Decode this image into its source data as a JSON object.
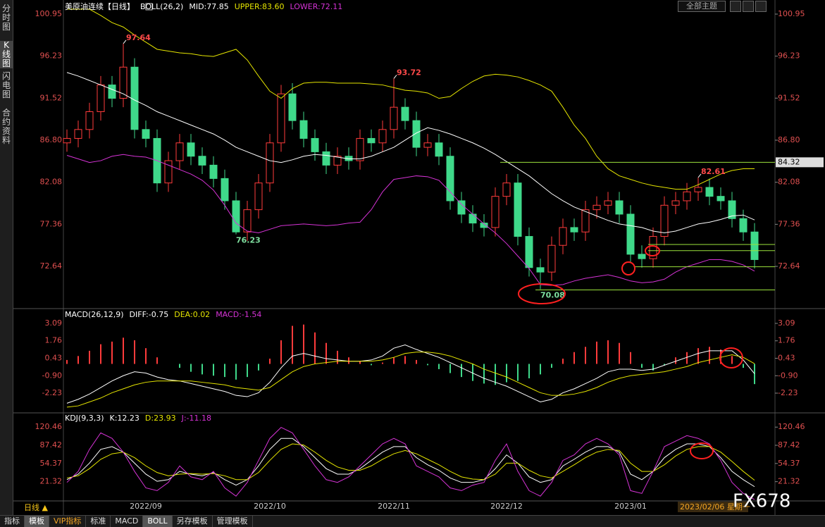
{
  "sidebar": [
    "分时图",
    "K线图",
    "闪电图",
    "合约资料"
  ],
  "toolbar": {
    "theme": "全部主题"
  },
  "footer": {
    "period": "日线 ▲",
    "tabs": [
      "指标",
      "模板",
      "VIP指标",
      "标准",
      "MACD",
      "BOLL",
      "另存模板",
      "管理模板"
    ],
    "cursor_date": "2023/02/06 星期一",
    "watermark": "FX678"
  },
  "chart_data": [
    {
      "type": "candlestick",
      "title": "美原油连续【日线】",
      "indicator": "BOLL(26,2)",
      "categories": [
        null,
        null,
        null,
        null,
        null,
        null,
        null,
        "2022/09",
        null,
        null,
        null,
        null,
        null,
        null,
        null,
        null,
        null,
        null,
        "2022/10",
        null,
        null,
        null,
        null,
        null,
        null,
        null,
        null,
        null,
        null,
        "2022/11",
        null,
        null,
        null,
        null,
        null,
        null,
        null,
        null,
        null,
        "2022/12",
        null,
        null,
        null,
        null,
        null,
        null,
        null,
        null,
        null,
        null,
        "2023/01",
        null,
        null,
        null,
        null,
        null,
        null,
        null,
        null,
        null,
        null,
        null
      ],
      "open": [
        86.5,
        87,
        88,
        90,
        93,
        91.5,
        95,
        88,
        87,
        82,
        84.5,
        86.5,
        85,
        84,
        82.5,
        80,
        76.5,
        79,
        82,
        86.5,
        92,
        89,
        87,
        85.5,
        84,
        85,
        84.5,
        87,
        86.5,
        88,
        90.5,
        89,
        86,
        86.5,
        85,
        80,
        78.5,
        77.5,
        77,
        80.5,
        82,
        76,
        72.5,
        72,
        75,
        77,
        76.5,
        79,
        79.5,
        80,
        78.5,
        74,
        73.5,
        76,
        79.5,
        80,
        81,
        81.5,
        80.5,
        80,
        78,
        76.5
      ],
      "high": [
        88,
        89,
        91,
        94,
        94,
        97.64,
        96,
        89,
        88,
        85.5,
        87.5,
        87.5,
        86,
        85,
        83.5,
        81,
        80,
        83,
        87.5,
        93,
        93.2,
        90,
        88,
        86.5,
        86,
        86,
        88,
        88,
        89,
        93.72,
        91.5,
        90,
        87.5,
        87.5,
        86,
        81,
        79.5,
        78.5,
        81.5,
        83,
        83,
        77,
        73.5,
        76,
        78,
        78,
        80,
        80.5,
        81,
        81,
        79.5,
        75,
        77,
        80.5,
        81,
        82,
        82.61,
        82.5,
        81.5,
        81,
        79,
        77.5
      ],
      "low": [
        85.5,
        86,
        87,
        89,
        90.5,
        90.5,
        87,
        86,
        81,
        81,
        83.5,
        84,
        83,
        81.5,
        79,
        76.23,
        75.5,
        78,
        81,
        85.5,
        88,
        86,
        84.5,
        83,
        83,
        83.5,
        83.5,
        85.5,
        85.5,
        87,
        88,
        85,
        85,
        84,
        79,
        77.5,
        76.5,
        76,
        76,
        79.5,
        75,
        71.5,
        70.08,
        71,
        74,
        75.5,
        75.5,
        78,
        78.5,
        77.5,
        73,
        72.5,
        72.5,
        75,
        78.5,
        79,
        80,
        79.5,
        79,
        77,
        75.5,
        72.4
      ],
      "close": [
        87,
        88,
        90,
        93,
        91.5,
        95,
        88,
        87,
        82,
        84.5,
        86.5,
        85,
        84,
        82.5,
        80,
        76.5,
        79,
        82,
        86.5,
        92,
        89,
        87,
        85.5,
        84,
        85,
        84.5,
        87,
        86.5,
        88,
        90.5,
        89,
        86,
        86.5,
        85,
        80,
        78.5,
        77.5,
        77,
        80.5,
        82,
        76,
        72.5,
        72,
        75,
        77,
        76.5,
        79,
        79.5,
        80,
        78.5,
        74,
        73.5,
        76,
        79.5,
        80,
        81,
        81.5,
        80.5,
        80,
        78,
        76.5,
        73.4
      ],
      "up_color": "#ff3b3b",
      "down_color": "#3fd98a",
      "series": [
        {
          "name": "MID:77.85",
          "color": "#ffffff",
          "values": [
            94.4,
            94,
            93.5,
            93,
            92.5,
            92,
            91.3,
            90.7,
            90,
            89.5,
            89,
            88.5,
            88,
            87.5,
            86.8,
            86,
            85.5,
            85,
            84.5,
            84.3,
            84.6,
            85,
            85.2,
            85.1,
            84.9,
            84.7,
            84.7,
            85,
            85.5,
            86,
            86.8,
            87.6,
            88.2,
            87.9,
            87.5,
            87,
            86.5,
            85.9,
            85.2,
            84.4,
            83.6,
            82.8,
            81.8,
            80.8,
            80,
            79.3,
            78.8,
            78.3,
            77.8,
            77.4,
            77.2,
            77,
            76.6,
            76.4,
            76.6,
            77,
            77.4,
            77.6,
            77.9,
            78.3,
            78.4,
            77.85
          ]
        },
        {
          "name": "UPPER:83.60",
          "color": "#e5e500",
          "values": [
            101.5,
            101.5,
            101.5,
            100.8,
            100,
            99.5,
            98.6,
            97.8,
            97,
            96.8,
            96.6,
            96.5,
            96.3,
            96.2,
            96.6,
            97,
            95.8,
            94,
            92.3,
            91.5,
            92.6,
            93.2,
            93.3,
            93.3,
            93.2,
            93.2,
            93.2,
            93.1,
            93,
            92.7,
            92.4,
            92.3,
            92.1,
            91.5,
            91.7,
            92.6,
            93.4,
            94,
            94.2,
            94.1,
            93.9,
            93.5,
            93,
            92.3,
            90.5,
            88.5,
            87,
            85,
            83.6,
            82.8,
            82.4,
            82,
            81.7,
            81.5,
            81.3,
            81.3,
            81.8,
            82.4,
            83,
            83.4,
            83.6,
            83.6
          ]
        },
        {
          "name": "LOWER:72.11",
          "color": "#d633d6",
          "values": [
            85.1,
            84.7,
            84.3,
            84.5,
            85,
            85.2,
            85,
            84.9,
            84.5,
            84,
            83.5,
            83,
            82.3,
            81.2,
            79.5,
            77.5,
            76.6,
            76.4,
            76.8,
            77.2,
            77.3,
            77.4,
            77.3,
            77.2,
            77.3,
            77.5,
            77.6,
            79,
            81,
            82.4,
            82.6,
            82.8,
            82.7,
            82.3,
            81,
            79.6,
            78.5,
            77.4,
            76.4,
            75.2,
            73.8,
            72.4,
            70.6,
            70.5,
            70.6,
            71,
            71.3,
            71.5,
            71.7,
            71.4,
            71,
            70.8,
            70.9,
            71.2,
            72,
            72.6,
            73,
            73.4,
            73.4,
            73.2,
            72.8,
            72.11
          ]
        }
      ],
      "high_marks": [
        97.64,
        93.72,
        82.61
      ],
      "low_marks": [
        76.23,
        70.08
      ],
      "resistance_line": 84.32,
      "support_lines": [
        75.1,
        74.4,
        72.6,
        70.0
      ],
      "ylim": [
        67.98,
        101.9
      ],
      "yticks": [
        100.95,
        96.23,
        91.52,
        {
          "value": 86.8,
          "label": "86.80"
        },
        82.08,
        77.36,
        72.64
      ]
    },
    {
      "type": "macd",
      "title": "MACD(26,12,9)",
      "up_color": "#ff3b3b",
      "down_color": "#3fd98a",
      "series": [
        {
          "name": "DIFF:-0.75",
          "color": "#ffffff",
          "values": [
            -3.0,
            -2.7,
            -2.3,
            -1.8,
            -1.3,
            -0.9,
            -0.6,
            -0.7,
            -1.0,
            -1.2,
            -1.3,
            -1.5,
            -1.7,
            -1.9,
            -2.1,
            -2.4,
            -2.5,
            -2.2,
            -1.4,
            -0.3,
            0.6,
            0.8,
            0.6,
            0.4,
            0.3,
            0.2,
            0.2,
            0.3,
            0.6,
            1.2,
            1.45,
            1.1,
            0.8,
            0.5,
            0.1,
            -0.3,
            -0.7,
            -1.1,
            -1.4,
            -1.7,
            -2.1,
            -2.5,
            -2.9,
            -2.7,
            -2.2,
            -1.9,
            -1.5,
            -1.1,
            -0.6,
            -0.4,
            -0.4,
            -0.5,
            -0.4,
            -0.1,
            0.2,
            0.5,
            0.8,
            1.0,
            1.0,
            1.0,
            0.3,
            -0.75
          ]
        },
        {
          "name": "DEA:0.02",
          "color": "#e5e500",
          "values": [
            -3.3,
            -3.2,
            -2.9,
            -2.6,
            -2.2,
            -1.9,
            -1.6,
            -1.4,
            -1.3,
            -1.3,
            -1.3,
            -1.3,
            -1.4,
            -1.5,
            -1.6,
            -1.8,
            -1.9,
            -2.0,
            -1.8,
            -1.2,
            -0.6,
            -0.2,
            0,
            0.1,
            0.2,
            0.2,
            0.2,
            0.2,
            0.3,
            0.5,
            0.8,
            0.9,
            0.9,
            0.8,
            0.6,
            0.3,
            0,
            -0.4,
            -0.7,
            -1.0,
            -1.4,
            -1.8,
            -2.2,
            -2.4,
            -2.4,
            -2.3,
            -2.1,
            -1.8,
            -1.4,
            -1.1,
            -0.9,
            -0.8,
            -0.7,
            -0.6,
            -0.4,
            -0.2,
            0.1,
            0.3,
            0.5,
            0.7,
            0.5,
            0.02
          ]
        },
        {
          "name": "MACD:-1.54",
          "color": "#d633d6",
          "type": "histogram",
          "values": [
            0.3,
            0.6,
            1.0,
            1.5,
            1.7,
            2.0,
            1.8,
            1.2,
            0.5,
            0,
            -0.3,
            -0.6,
            -0.8,
            -0.9,
            -1.0,
            -1.2,
            -1.0,
            -0.5,
            0.4,
            1.8,
            2.9,
            3.0,
            2.4,
            1.6,
            1.0,
            0.5,
            0.2,
            -0.1,
            0.1,
            0.5,
            0.6,
            0.3,
            -0.1,
            -0.4,
            -0.7,
            -1.0,
            -1.3,
            -1.5,
            -1.6,
            -1.4,
            -1.3,
            -1.1,
            -0.8,
            -0.3,
            0.4,
            0.9,
            1.3,
            1.7,
            1.8,
            1.6,
            0.9,
            -0.3,
            -0.5,
            -0.1,
            0.5,
            0.9,
            1.2,
            1.3,
            1.1,
            0.6,
            -0.3,
            -1.54
          ]
        }
      ],
      "ylim": [
        -3.68,
        4.11
      ],
      "yticks": [
        3.09,
        1.76,
        0.43,
        {
          "value": -0.9,
          "label": "-0.90"
        },
        -2.23
      ]
    },
    {
      "type": "kdj",
      "title": "KDJ(9,3,3)",
      "series": [
        {
          "name": "K:12.23",
          "color": "#ffffff",
          "values": [
            25,
            35,
            55,
            80,
            85,
            75,
            55,
            35,
            22,
            25,
            40,
            35,
            32,
            38,
            25,
            15,
            25,
            50,
            80,
            100,
            100,
            85,
            65,
            45,
            35,
            35,
            45,
            60,
            75,
            85,
            85,
            65,
            52,
            42,
            28,
            20,
            20,
            25,
            45,
            70,
            55,
            30,
            20,
            25,
            50,
            62,
            75,
            85,
            85,
            75,
            35,
            25,
            40,
            65,
            80,
            90,
            90,
            85,
            65,
            40,
            25,
            12.23
          ]
        },
        {
          "name": "D:23.93",
          "color": "#e5e500",
          "values": [
            28,
            32,
            45,
            62,
            72,
            75,
            65,
            50,
            38,
            32,
            35,
            36,
            35,
            36,
            32,
            25,
            25,
            38,
            60,
            80,
            90,
            88,
            75,
            60,
            48,
            42,
            42,
            50,
            62,
            72,
            78,
            72,
            62,
            52,
            40,
            30,
            26,
            25,
            35,
            55,
            55,
            42,
            32,
            28,
            40,
            52,
            65,
            75,
            80,
            78,
            55,
            40,
            40,
            52,
            68,
            80,
            85,
            85,
            75,
            58,
            40,
            23.93
          ]
        },
        {
          "name": "J:-11.18",
          "color": "#d633d6",
          "values": [
            20,
            40,
            80,
            110,
            100,
            75,
            40,
            10,
            5,
            20,
            50,
            30,
            25,
            40,
            10,
            -5,
            20,
            60,
            100,
            120,
            110,
            80,
            50,
            25,
            20,
            30,
            50,
            70,
            90,
            100,
            90,
            50,
            40,
            30,
            10,
            5,
            15,
            20,
            60,
            90,
            40,
            5,
            -5,
            20,
            60,
            70,
            90,
            100,
            90,
            70,
            5,
            0,
            40,
            85,
            95,
            105,
            100,
            90,
            60,
            20,
            0,
            -11.18
          ]
        }
      ],
      "ylim": [
        -13.7,
        143.8
      ],
      "yticks": [
        120.46,
        87.42,
        54.37,
        21.32
      ]
    }
  ]
}
